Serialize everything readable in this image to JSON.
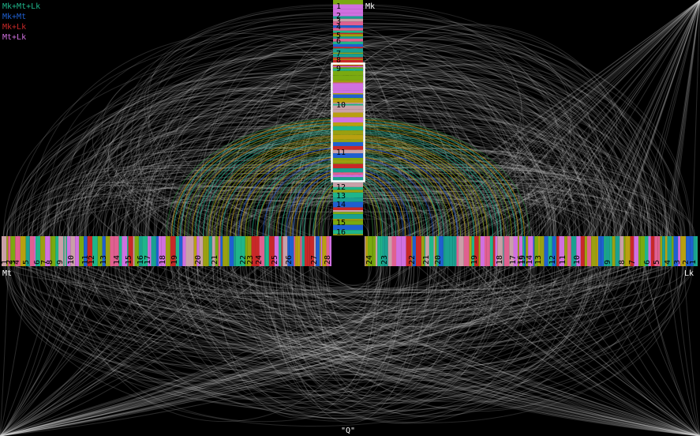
{
  "legend": [
    {
      "label": "Mk+Mt+Lk",
      "color": "#1fb58a"
    },
    {
      "label": "Mk+Mt",
      "color": "#1f5fd0"
    },
    {
      "label": "Mk+Lk",
      "color": "#c82828"
    },
    {
      "label": "Mt+Lk",
      "color": "#d070e0"
    }
  ],
  "genomes": {
    "Mk": {
      "label": "Mk",
      "chromosomes": [
        "1",
        "2",
        "3",
        "4",
        "5",
        "6",
        "7",
        "8",
        "9",
        "10",
        "11",
        "12",
        "13",
        "14",
        "15",
        "16"
      ]
    },
    "Mt": {
      "label": "Mt",
      "chromosomes": [
        "1",
        "2",
        "3",
        "4",
        "5",
        "6",
        "7",
        "8",
        "9",
        "10",
        "11",
        "12",
        "13",
        "14",
        "15",
        "16",
        "17",
        "18",
        "19",
        "20",
        "21",
        "22",
        "23",
        "24",
        "25",
        "26",
        "27",
        "28"
      ]
    },
    "Lk": {
      "label": "Lk",
      "chromosomes": [
        "1",
        "2",
        "3",
        "4",
        "5",
        "6",
        "7",
        "8",
        "9",
        "10",
        "11",
        "12",
        "13",
        "14",
        "15",
        "16",
        "17",
        "18",
        "19",
        "20",
        "21",
        "22",
        "23",
        "24"
      ]
    }
  },
  "query": "\"Q\""
}
